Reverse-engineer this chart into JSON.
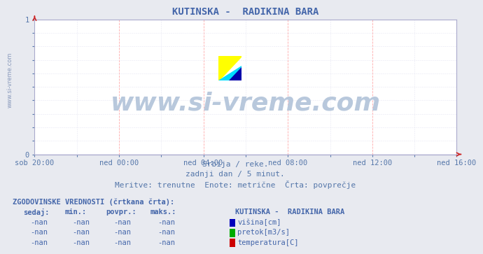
{
  "title": "KUTINSKA -  RADIKINA BARA",
  "title_color": "#4466aa",
  "bg_color": "#e8eaf0",
  "plot_bg_color": "#ffffff",
  "watermark_text": "www.si-vreme.com",
  "watermark_color": "#b8c8dc",
  "subtitle_lines": [
    "Srbija / reke.",
    "zadnji dan / 5 minut.",
    "Meritve: trenutne  Enote: metrične  Črta: povprečje"
  ],
  "subtitle_color": "#5577aa",
  "x_tick_labels": [
    "sob 20:00",
    "ned 00:00",
    "ned 04:00",
    "ned 08:00",
    "ned 12:00",
    "ned 16:00"
  ],
  "x_tick_positions": [
    0.0,
    0.2,
    0.4,
    0.6,
    0.8,
    1.0
  ],
  "grid_color": "#ffaaaa",
  "grid_color_minor": "#ddddee",
  "axis_spine_color": "#aaaacc",
  "tick_color": "#5577aa",
  "axis_line_color": "#9999cc",
  "arrow_color": "#cc2222",
  "legend_title": "KUTINSKA -  RADIKINA BARA",
  "legend_items": [
    {
      "label": "višina[cm]",
      "color": "#0000bb"
    },
    {
      "label": "pretok[m3/s]",
      "color": "#00aa00"
    },
    {
      "label": "temperatura[C]",
      "color": "#cc0000"
    }
  ],
  "table_header": [
    "sedaj:",
    "min.:",
    "povpr.:",
    "maks.:"
  ],
  "table_rows": [
    [
      "-nan",
      "-nan",
      "-nan",
      "-nan"
    ],
    [
      "-nan",
      "-nan",
      "-nan",
      "-nan"
    ],
    [
      "-nan",
      "-nan",
      "-nan",
      "-nan"
    ]
  ],
  "table_text_color": "#4466aa",
  "hist_label": "ZGODOVINSKE VREDNOSTI (črtkana črta):",
  "watermark_label_color": "#8899bb",
  "logo_yellow": "#ffff00",
  "logo_cyan": "#00ddff",
  "logo_blue": "#0000aa",
  "font_size_title": 10,
  "font_size_axis": 7.5,
  "font_size_subtitle": 8,
  "font_size_table": 7.5,
  "font_size_watermark": 26
}
